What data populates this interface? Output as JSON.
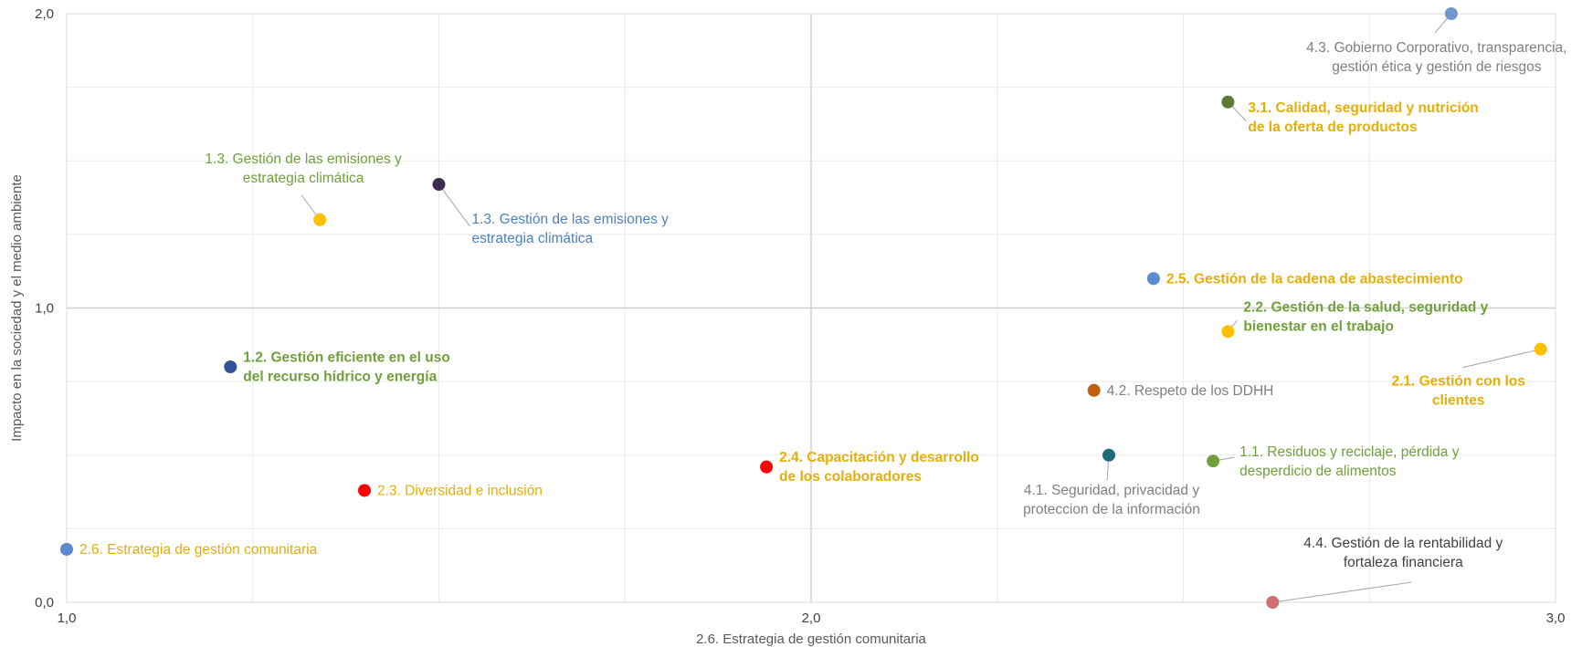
{
  "chart_data": {
    "type": "scatter",
    "title": "",
    "xlabel": "2.6. Estrategia de gestión comunitaria",
    "ylabel": "Impacto en la sociedad y el medio ambiente",
    "xlim": [
      1.0,
      3.0
    ],
    "ylim": [
      0.0,
      2.0
    ],
    "x_ticks": [
      {
        "value": 1.0,
        "label": "1,0"
      },
      {
        "value": 2.0,
        "label": "2,0"
      },
      {
        "value": 3.0,
        "label": "3,0"
      }
    ],
    "y_ticks": [
      {
        "value": 0.0,
        "label": "0,0"
      },
      {
        "value": 1.0,
        "label": "1,0"
      },
      {
        "value": 2.0,
        "label": "2,0"
      }
    ],
    "grid": true,
    "quadrant_lines": {
      "x": 2.0,
      "y": 1.0
    },
    "points": [
      {
        "id": "p43",
        "x": 2.86,
        "y": 2.0,
        "color": "#6f98cf",
        "label_lines": [
          "4.3. Gobierno Corporativo, transparencia,",
          "gestión ética y gestión de riesgos"
        ],
        "label_color": "#7f7f7f",
        "bold": false,
        "label_pos": "below-left",
        "leader": true
      },
      {
        "id": "p31",
        "x": 2.56,
        "y": 1.7,
        "color": "#5a7a36",
        "label_lines": [
          "3.1. Calidad, seguridad y nutrición",
          "de la oferta de productos"
        ],
        "label_color": "#e6ae07",
        "bold": true,
        "label_pos": "right",
        "leader": true
      },
      {
        "id": "p13a",
        "x": 1.34,
        "y": 1.3,
        "color": "#ffc000",
        "label_lines": [
          "1.3. Gestión de las emisiones y",
          "estrategia climática"
        ],
        "label_color": "#70a03b",
        "bold": false,
        "label_pos": "above-left",
        "leader": true
      },
      {
        "id": "p13b",
        "x": 1.5,
        "y": 1.42,
        "color": "#3d2c52",
        "label_lines": [
          "1.3. Gestión de las emisiones y",
          "estrategia climática"
        ],
        "label_color": "#4f81bd",
        "bold": false,
        "label_pos": "below-right",
        "leader": true
      },
      {
        "id": "p25",
        "x": 2.46,
        "y": 1.1,
        "color": "#5b8ad0",
        "label_lines": [
          "2.5. Gestión de la cadena de abastecimiento"
        ],
        "label_color": "#e6ae07",
        "bold": true,
        "label_pos": "right",
        "leader": false
      },
      {
        "id": "p22",
        "x": 2.56,
        "y": 0.92,
        "color": "#ffc000",
        "label_lines": [
          "2.2. Gestión de la salud, seguridad y",
          "bienestar en el trabajo"
        ],
        "label_color": "#70a03b",
        "bold": true,
        "label_pos": "above-right",
        "leader": true
      },
      {
        "id": "p21",
        "x": 2.98,
        "y": 0.86,
        "color": "#ffc000",
        "label_lines": [
          "2.1. Gestión con los",
          "clientes"
        ],
        "label_color": "#e6ae07",
        "bold": true,
        "label_pos": "below-left",
        "leader": true
      },
      {
        "id": "p12",
        "x": 1.22,
        "y": 0.8,
        "color": "#2f5597",
        "label_lines": [
          "1.2. Gestión eficiente en el uso",
          "del recurso hídrico y energía"
        ],
        "label_color": "#70a03b",
        "bold": true,
        "label_pos": "right",
        "leader": false
      },
      {
        "id": "p42",
        "x": 2.38,
        "y": 0.72,
        "color": "#c0600c",
        "label_lines": [
          "4.2. Respeto de los DDHH"
        ],
        "label_color": "#7f7f7f",
        "bold": false,
        "label_pos": "right",
        "leader": false
      },
      {
        "id": "p41",
        "x": 2.4,
        "y": 0.5,
        "color": "#1f6b7a",
        "label_lines": [
          "4.1. Seguridad, privacidad y",
          "proteccion de la información"
        ],
        "label_color": "#7f7f7f",
        "bold": false,
        "label_pos": "below",
        "leader": true
      },
      {
        "id": "p11",
        "x": 2.54,
        "y": 0.48,
        "color": "#70a03b",
        "label_lines": [
          "1.1. Residuos y reciclaje, pérdida y",
          "desperdicio de alimentos"
        ],
        "label_color": "#70a03b",
        "bold": false,
        "label_pos": "right",
        "leader": true
      },
      {
        "id": "p24",
        "x": 1.94,
        "y": 0.46,
        "color": "#ff0000",
        "label_lines": [
          "2.4. Capacitación y desarrollo",
          "de los colaboradores"
        ],
        "label_color": "#e6ae07",
        "bold": true,
        "label_pos": "right",
        "leader": false
      },
      {
        "id": "p23",
        "x": 1.4,
        "y": 0.38,
        "color": "#ff0000",
        "label_lines": [
          "2.3. Diversidad e inclusión"
        ],
        "label_color": "#e6ae07",
        "bold": false,
        "label_pos": "right",
        "leader": false
      },
      {
        "id": "p26",
        "x": 1.0,
        "y": 0.18,
        "color": "#5b8ad0",
        "label_lines": [
          "2.6. Estrategia de gestión comunitaria"
        ],
        "label_color": "#e6ae07",
        "bold": false,
        "label_pos": "right",
        "leader": false
      },
      {
        "id": "p44",
        "x": 2.62,
        "y": 0.0,
        "color": "#d07070",
        "label_lines": [
          "4.4. Gestión de la rentabilidad y",
          "fortaleza financiera"
        ],
        "label_color": "#404040",
        "bold": false,
        "label_pos": "above-right",
        "leader": true
      }
    ]
  }
}
